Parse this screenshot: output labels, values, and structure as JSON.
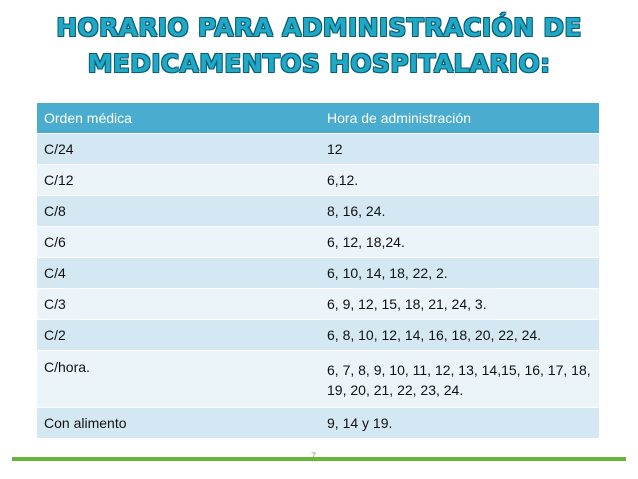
{
  "title": {
    "line1": "HORARIO PARA ADMINISTRACIÓN DE",
    "line2": "MEDICAMENTOS HOSPITALARIO:"
  },
  "table": {
    "headers": [
      "Orden médica",
      "Hora de administración"
    ],
    "rows": [
      [
        "C/24",
        "12"
      ],
      [
        "C/12",
        "6,12."
      ],
      [
        "C/8",
        "8, 16, 24."
      ],
      [
        "C/6",
        "6, 12, 18,24."
      ],
      [
        "C/4",
        "6, 10, 14, 18, 22, 2."
      ],
      [
        "C/3",
        "6, 9, 12, 15, 18, 21, 24, 3."
      ],
      [
        "C/2",
        "6, 8, 10, 12, 14, 16, 18, 20, 22, 24."
      ],
      [
        "C/hora.",
        "6, 7, 8, 9, 10, 11, 12, 13, 14,15, 16, 17, 18, 19, 20, 21, 22, 23, 24."
      ],
      [
        "Con alimento",
        "9, 14 y 19."
      ]
    ]
  },
  "footer": {
    "page_mark": "7"
  },
  "colors": {
    "title": "#20a8c7",
    "header_bg": "#4aaccf",
    "row_dark": "#d3e8f2",
    "row_light": "#eaf4f9",
    "footer_line": "#6ab539"
  }
}
